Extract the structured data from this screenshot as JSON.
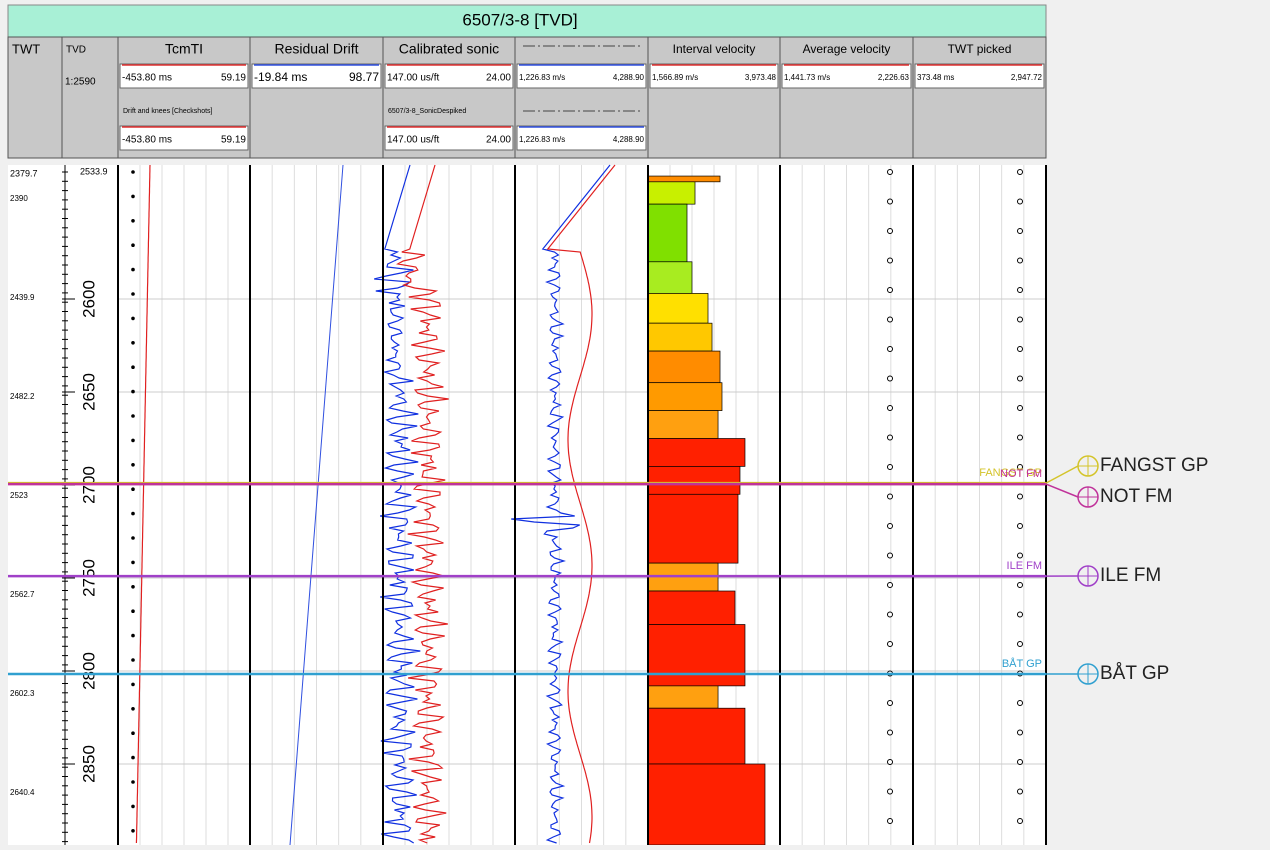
{
  "title": "6507/3-8 [TVD]",
  "columns": [
    {
      "name": "TWT"
    },
    {
      "name": "TVD",
      "scale": "1:2590"
    },
    {
      "name": "TcmTI",
      "range": [
        "-453.80 ms",
        "59.19"
      ],
      "sub": "Drift and knees [Checkshots]",
      "sub_range": [
        "-453.80 ms",
        "59.19"
      ]
    },
    {
      "name": "Residual Drift",
      "range": [
        "-19.84 ms",
        "98.77"
      ]
    },
    {
      "name": "Calibrated sonic",
      "range": [
        "147.00 us/ft",
        "24.00"
      ],
      "sub": "6507/3-8_SonicDespiked",
      "sub_range": [
        "147.00 us/ft",
        "24.00"
      ]
    },
    {
      "range": [
        "1,226.83 m/s",
        "4,288.90"
      ],
      "sub_range": [
        "1,226.83 m/s",
        "4,288.90"
      ]
    },
    {
      "name": "Interval velocity",
      "range": [
        "1,566.89 m/s",
        "3,973.48"
      ]
    },
    {
      "name": "Average velocity",
      "range": [
        "1,441.73 m/s",
        "2,226.63"
      ]
    },
    {
      "name": "TWT picked",
      "range": [
        "373.48 ms",
        "2,947.72"
      ]
    }
  ],
  "depth_top": "2533.9",
  "tvd_ticks": [
    2600,
    2650,
    2700,
    2750,
    2800,
    2850
  ],
  "twt_labels": [
    "2379.7",
    "2390",
    "2439.9",
    "2482.2",
    "2523",
    "2562.7",
    "2602.3",
    "2640.4"
  ],
  "interval_velocity": {
    "top_depths": [
      2533.9,
      2537,
      2549,
      2580,
      2597,
      2613,
      2628,
      2645,
      2660,
      2675,
      2690,
      2705,
      2742,
      2757,
      2775,
      2808,
      2820,
      2850
    ],
    "values": [
      2880,
      2424,
      2278,
      2369,
      2661,
      2734,
      2880,
      2916,
      2844,
      3335,
      3244,
      3208,
      2844,
      3153,
      3335,
      2844,
      3335,
      3700
    ],
    "colors": [
      "#ff8c00",
      "#c8f000",
      "#80e000",
      "#a8ec20",
      "#ffe000",
      "#ffc800",
      "#ff8c00",
      "#ff9a00",
      "#ffa010",
      "#ff2000",
      "#ff2000",
      "#ff2000",
      "#ffa010",
      "#ff2000",
      "#ff2000",
      "#ffa010",
      "#ff2000",
      "#ff2000"
    ]
  },
  "markers": [
    {
      "name": "FANGST GP",
      "depth": 2699,
      "color": "#d4c42a"
    },
    {
      "name": "NOT FM",
      "depth": 2699.5,
      "color": "#c0329a"
    },
    {
      "name": "ILE FM",
      "depth": 2749,
      "color": "#a040c8"
    },
    {
      "name": "BÅT GP",
      "depth": 2801.6,
      "color": "#30a0d0"
    }
  ]
}
